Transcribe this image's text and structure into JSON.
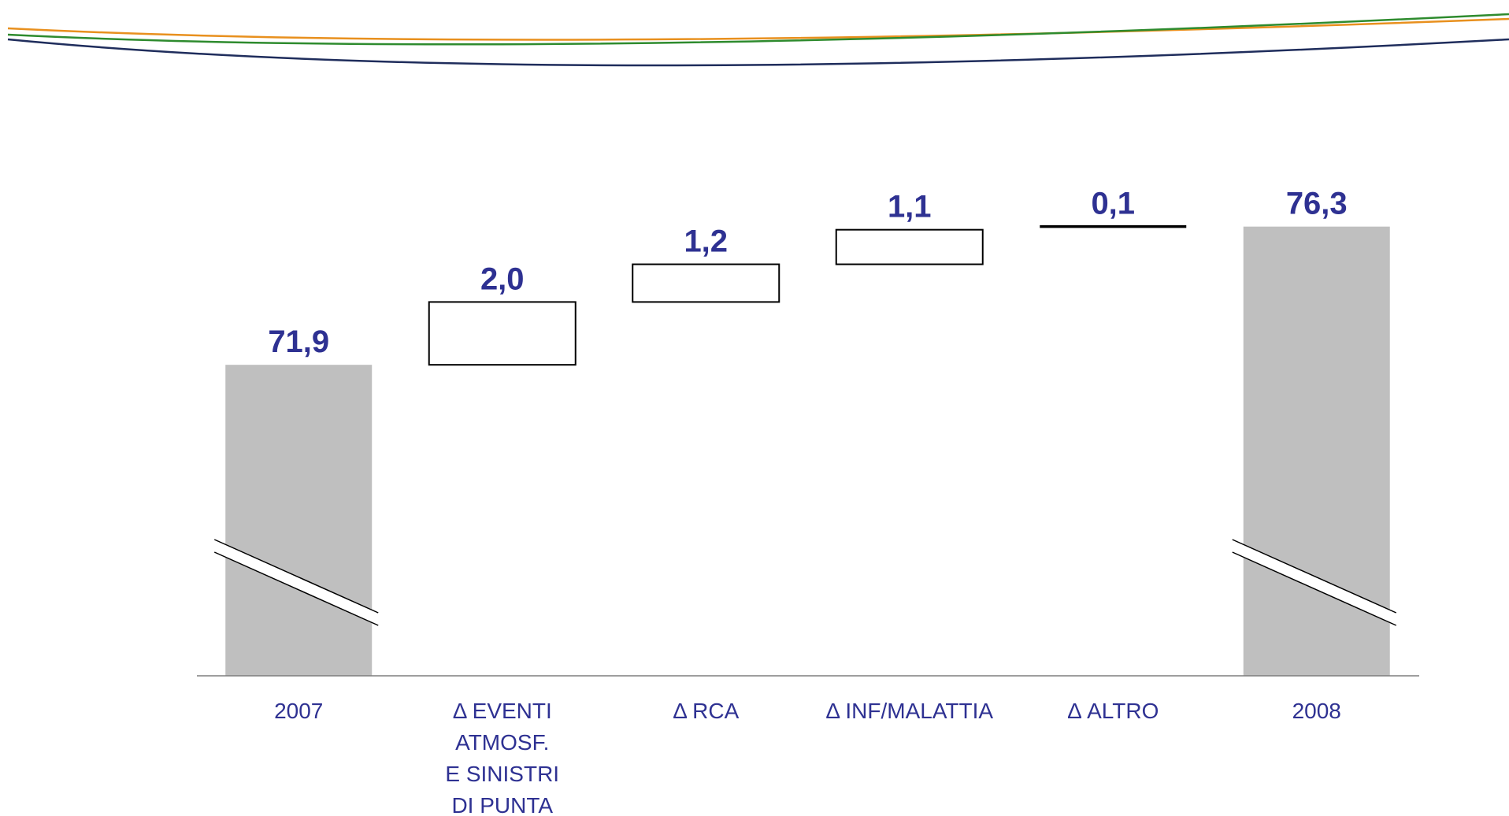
{
  "header_swoosh": {
    "colors": [
      "#e8901e",
      "#2e8b2e",
      "#1f2d5c"
    ]
  },
  "chart_data": {
    "type": "waterfall",
    "categories": [
      [
        "2007"
      ],
      [
        "Δ EVENTI",
        "ATMOSF.",
        "E SINISTRI",
        "DI PUNTA"
      ],
      [
        "Δ RCA"
      ],
      [
        "Δ INF/MALATTIA"
      ],
      [
        "Δ ALTRO"
      ],
      [
        "2008"
      ]
    ],
    "values": [
      71.9,
      2.0,
      1.2,
      1.1,
      0.1,
      76.3
    ],
    "value_labels": [
      "71,9",
      "2,0",
      "1,2",
      "1,1",
      "0,1",
      "76,3"
    ],
    "kinds": [
      "total",
      "delta",
      "delta",
      "delta",
      "delta",
      "total"
    ],
    "axis_break": true,
    "ylim": [
      62,
      79
    ],
    "colors": {
      "total_bar": "#bfbfbf",
      "delta_fill": "#ffffff",
      "delta_stroke": "#000000",
      "value_label": "#2e3192",
      "category_label": "#2e3192",
      "axis": "#7f7f7f"
    }
  }
}
